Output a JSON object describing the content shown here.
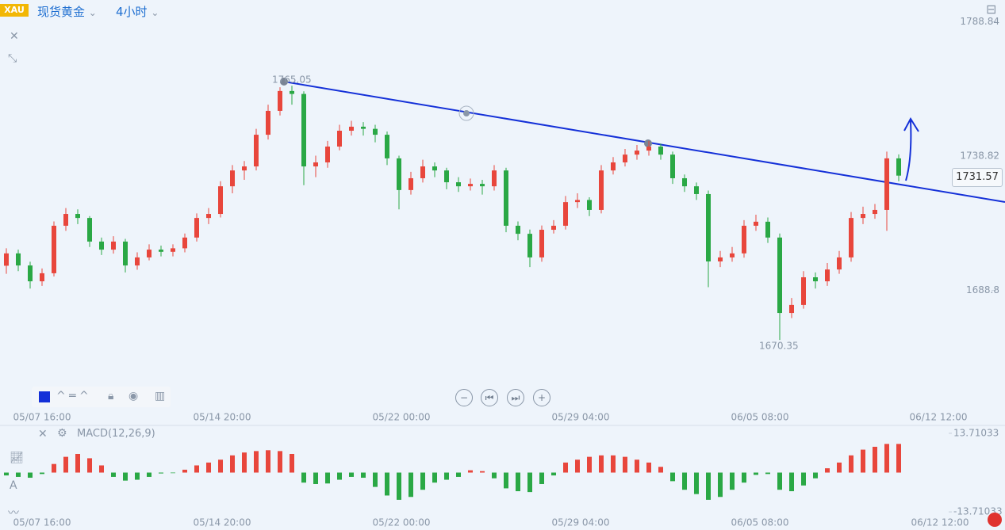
{
  "header": {
    "symbol_badge": "XAU",
    "instrument": "现货黄金",
    "timeframe": "4小时"
  },
  "chart_data": {
    "type": "candlestick",
    "up_color": "#e8463c",
    "down_color": "#2aa845",
    "ylim": [
      1645,
      1797
    ],
    "yticks": [
      1788.84,
      1738.82,
      1688.8
    ],
    "x_labels": [
      "05/07 16:00",
      "05/14 20:00",
      "05/22 00:00",
      "05/29 04:00",
      "06/05 08:00",
      "06/12 12:00"
    ],
    "high_label": "1765.05",
    "low_label": "1670.35",
    "last_price": "1731.57",
    "candles": [
      [
        1698.0,
        1704.5,
        1695.0,
        1702.6
      ],
      [
        1702.6,
        1704.0,
        1696.0,
        1698.1
      ],
      [
        1698.1,
        1699.5,
        1689.5,
        1692.2
      ],
      [
        1692.2,
        1697.0,
        1690.5,
        1695.2
      ],
      [
        1695.2,
        1714.5,
        1694.0,
        1712.9
      ],
      [
        1712.9,
        1719.5,
        1711.0,
        1717.3
      ],
      [
        1717.3,
        1719.0,
        1713.5,
        1715.8
      ],
      [
        1715.8,
        1716.5,
        1705.0,
        1707.0
      ],
      [
        1707.0,
        1708.5,
        1702.0,
        1704.0
      ],
      [
        1704.0,
        1709.0,
        1702.5,
        1707.0
      ],
      [
        1707.0,
        1708.0,
        1695.5,
        1698.1
      ],
      [
        1698.1,
        1703.0,
        1696.5,
        1701.1
      ],
      [
        1701.1,
        1706.0,
        1700.0,
        1704.0
      ],
      [
        1704.0,
        1705.5,
        1701.5,
        1703.2
      ],
      [
        1703.2,
        1706.0,
        1701.5,
        1704.5
      ],
      [
        1704.5,
        1710.0,
        1703.0,
        1708.5
      ],
      [
        1708.5,
        1717.5,
        1707.0,
        1715.8
      ],
      [
        1715.8,
        1719.5,
        1713.5,
        1717.3
      ],
      [
        1717.3,
        1729.5,
        1716.0,
        1727.6
      ],
      [
        1727.6,
        1735.5,
        1725.0,
        1733.5
      ],
      [
        1733.5,
        1737.0,
        1730.0,
        1735.0
      ],
      [
        1735.0,
        1749.0,
        1733.5,
        1746.8
      ],
      [
        1746.8,
        1758.0,
        1745.0,
        1755.7
      ],
      [
        1755.7,
        1764.5,
        1754.0,
        1763.1
      ],
      [
        1763.1,
        1765.05,
        1758.0,
        1762.0
      ],
      [
        1762.0,
        1763.0,
        1728.0,
        1735.0
      ],
      [
        1735.0,
        1739.0,
        1731.0,
        1736.5
      ],
      [
        1736.5,
        1744.5,
        1734.5,
        1742.4
      ],
      [
        1742.4,
        1750.5,
        1741.0,
        1748.3
      ],
      [
        1748.3,
        1752.0,
        1746.5,
        1749.8
      ],
      [
        1749.8,
        1751.5,
        1746.5,
        1749.0
      ],
      [
        1749.0,
        1750.5,
        1744.0,
        1746.8
      ],
      [
        1746.8,
        1748.0,
        1735.5,
        1738.0
      ],
      [
        1738.0,
        1739.0,
        1719.0,
        1726.2
      ],
      [
        1726.2,
        1733.0,
        1724.5,
        1730.6
      ],
      [
        1730.6,
        1737.5,
        1729.0,
        1735.0
      ],
      [
        1735.0,
        1736.5,
        1731.0,
        1733.5
      ],
      [
        1733.5,
        1734.5,
        1726.5,
        1729.1
      ],
      [
        1729.1,
        1731.0,
        1725.5,
        1727.6
      ],
      [
        1727.6,
        1730.5,
        1726.0,
        1728.5
      ],
      [
        1728.5,
        1730.0,
        1724.5,
        1727.6
      ],
      [
        1727.6,
        1735.5,
        1726.0,
        1733.5
      ],
      [
        1733.5,
        1734.5,
        1710.5,
        1712.9
      ],
      [
        1712.9,
        1714.5,
        1707.5,
        1709.9
      ],
      [
        1709.9,
        1711.5,
        1697.5,
        1701.1
      ],
      [
        1701.1,
        1713.0,
        1699.5,
        1711.4
      ],
      [
        1711.4,
        1715.0,
        1710.0,
        1712.9
      ],
      [
        1712.9,
        1724.0,
        1711.5,
        1721.7
      ],
      [
        1721.7,
        1725.0,
        1719.5,
        1722.5
      ],
      [
        1722.5,
        1723.5,
        1716.5,
        1718.8
      ],
      [
        1718.8,
        1735.5,
        1717.5,
        1733.5
      ],
      [
        1733.5,
        1738.5,
        1732.0,
        1736.5
      ],
      [
        1736.5,
        1741.5,
        1735.0,
        1739.4
      ],
      [
        1739.4,
        1743.0,
        1737.5,
        1740.9
      ],
      [
        1740.9,
        1744.5,
        1739.0,
        1742.4
      ],
      [
        1742.4,
        1743.5,
        1737.5,
        1739.4
      ],
      [
        1739.4,
        1740.5,
        1728.5,
        1730.6
      ],
      [
        1730.6,
        1732.0,
        1725.5,
        1727.6
      ],
      [
        1727.6,
        1729.0,
        1722.5,
        1724.7
      ],
      [
        1724.7,
        1726.0,
        1690.0,
        1699.6
      ],
      [
        1699.6,
        1703.5,
        1697.5,
        1701.1
      ],
      [
        1701.1,
        1705.0,
        1699.5,
        1702.6
      ],
      [
        1702.6,
        1715.0,
        1701.0,
        1712.9
      ],
      [
        1712.9,
        1717.0,
        1711.0,
        1714.4
      ],
      [
        1714.4,
        1716.0,
        1706.5,
        1708.5
      ],
      [
        1708.5,
        1710.0,
        1670.35,
        1680.4
      ],
      [
        1680.4,
        1686.0,
        1678.5,
        1683.4
      ],
      [
        1683.4,
        1696.0,
        1682.0,
        1693.7
      ],
      [
        1693.7,
        1695.5,
        1689.5,
        1692.2
      ],
      [
        1692.2,
        1699.0,
        1690.5,
        1696.6
      ],
      [
        1696.6,
        1703.5,
        1695.0,
        1701.1
      ],
      [
        1701.1,
        1718.0,
        1699.5,
        1715.8
      ],
      [
        1715.8,
        1720.0,
        1713.5,
        1717.3
      ],
      [
        1717.3,
        1721.0,
        1715.5,
        1718.8
      ],
      [
        1718.8,
        1740.5,
        1711.0,
        1738.0
      ],
      [
        1738.0,
        1739.5,
        1729.5,
        1731.57
      ]
    ],
    "macd": {
      "title": "MACD(12,26,9)",
      "ylim": [
        -18.1,
        16.45
      ],
      "yticks": [
        13.71033,
        -13.71033
      ],
      "values": [
        -1.0,
        -1.5,
        -1.8,
        -0.5,
        3.0,
        5.5,
        6.5,
        5.0,
        2.5,
        -1.5,
        -2.8,
        -2.5,
        -1.5,
        -0.3,
        -0.2,
        1.0,
        2.5,
        3.5,
        4.5,
        6.0,
        7.0,
        7.5,
        7.8,
        7.5,
        6.5,
        -3.5,
        -4.0,
        -3.8,
        -2.5,
        -1.5,
        -1.8,
        -5.0,
        -8.0,
        -9.5,
        -8.5,
        -6.0,
        -3.5,
        -2.5,
        -1.5,
        0.8,
        0.5,
        -2.0,
        -5.5,
        -6.5,
        -6.8,
        -4.0,
        -1.0,
        3.5,
        4.5,
        5.5,
        6.0,
        6.0,
        5.5,
        4.5,
        3.5,
        2.0,
        -3.0,
        -6.0,
        -7.5,
        -9.5,
        -8.5,
        -6.0,
        -3.5,
        -0.8,
        -0.5,
        -6.0,
        -6.5,
        -4.5,
        -2.0,
        1.5,
        3.5,
        6.0,
        8.0,
        9.0,
        10.0,
        10.0
      ]
    }
  }
}
